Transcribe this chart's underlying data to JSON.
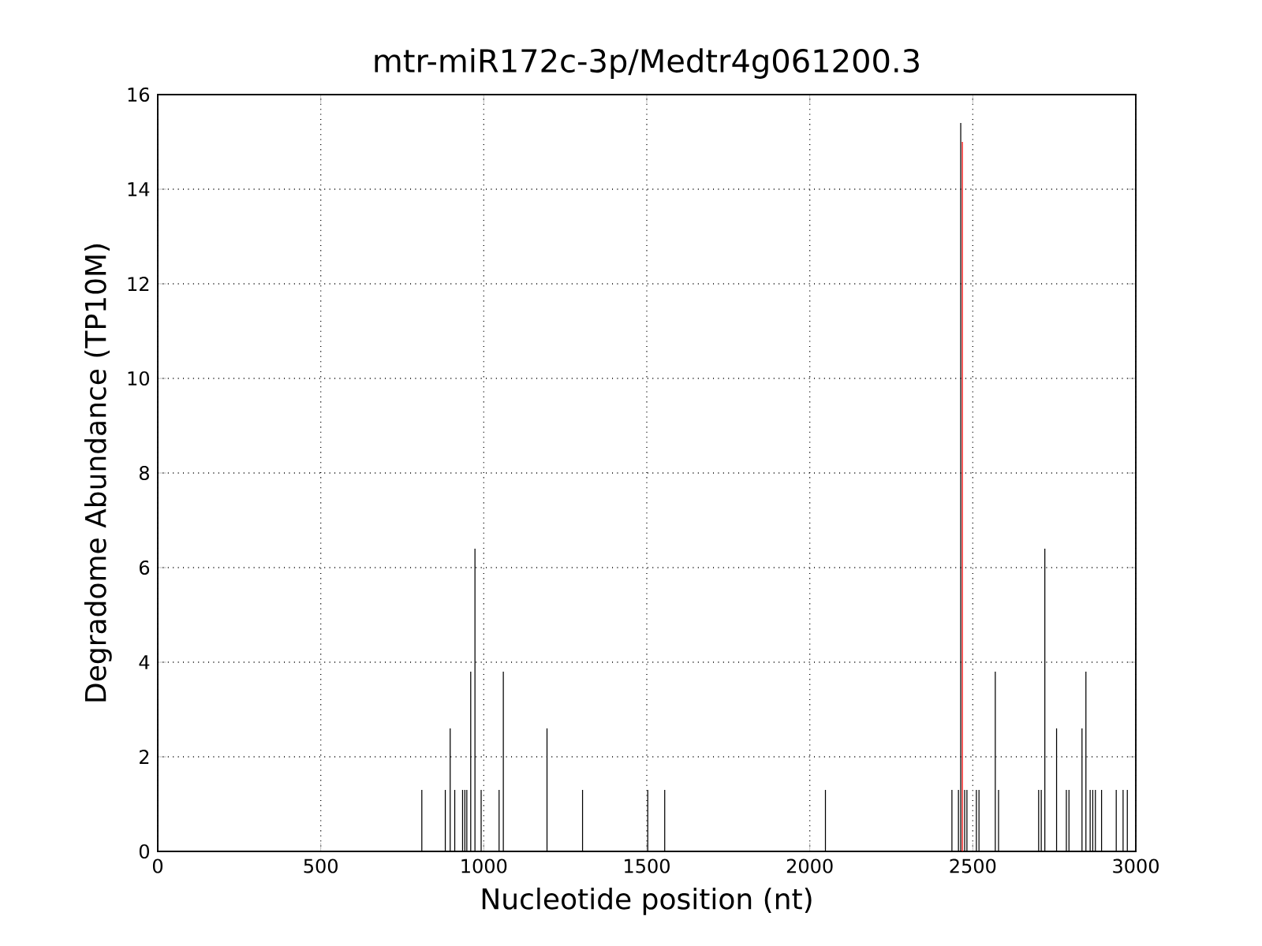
{
  "chart_data": {
    "type": "bar",
    "title": "mtr-miR172c-3p/Medtr4g061200.3",
    "xlabel": "Nucleotide position (nt)",
    "ylabel": "Degradome Abundance (TP10M)",
    "series": [
      {
        "color": "#000000",
        "x": [
          810,
          882,
          897,
          911,
          935,
          942,
          948,
          960,
          973,
          992,
          1047,
          1060,
          1194,
          1303,
          1503,
          1555,
          2048,
          2436,
          2456,
          2463,
          2475,
          2482,
          2511,
          2519,
          2569,
          2579,
          2702,
          2710,
          2721,
          2757,
          2787,
          2795,
          2835,
          2847,
          2860,
          2868,
          2876,
          2895,
          2940,
          2961,
          2974
        ],
        "values": [
          1.3,
          1.3,
          2.6,
          1.3,
          1.3,
          1.3,
          1.3,
          3.8,
          6.4,
          1.3,
          1.3,
          3.8,
          2.6,
          1.3,
          1.3,
          1.3,
          1.3,
          1.3,
          1.3,
          15.4,
          1.3,
          1.3,
          1.3,
          1.3,
          3.8,
          1.3,
          1.3,
          1.3,
          6.4,
          2.6,
          1.3,
          1.3,
          2.6,
          3.8,
          1.3,
          1.3,
          1.3,
          1.3,
          1.3,
          1.3,
          1.3
        ]
      },
      {
        "color": "#ff0000",
        "x": [
          2468
        ],
        "values": [
          15.0
        ]
      }
    ],
    "xlim": [
      0,
      3000
    ],
    "ylim": [
      0,
      16
    ],
    "xticks": [
      0,
      500,
      1000,
      1500,
      2000,
      2500,
      3000
    ],
    "yticks": [
      0,
      2,
      4,
      6,
      8,
      10,
      12,
      14,
      16
    ],
    "grid": true
  }
}
